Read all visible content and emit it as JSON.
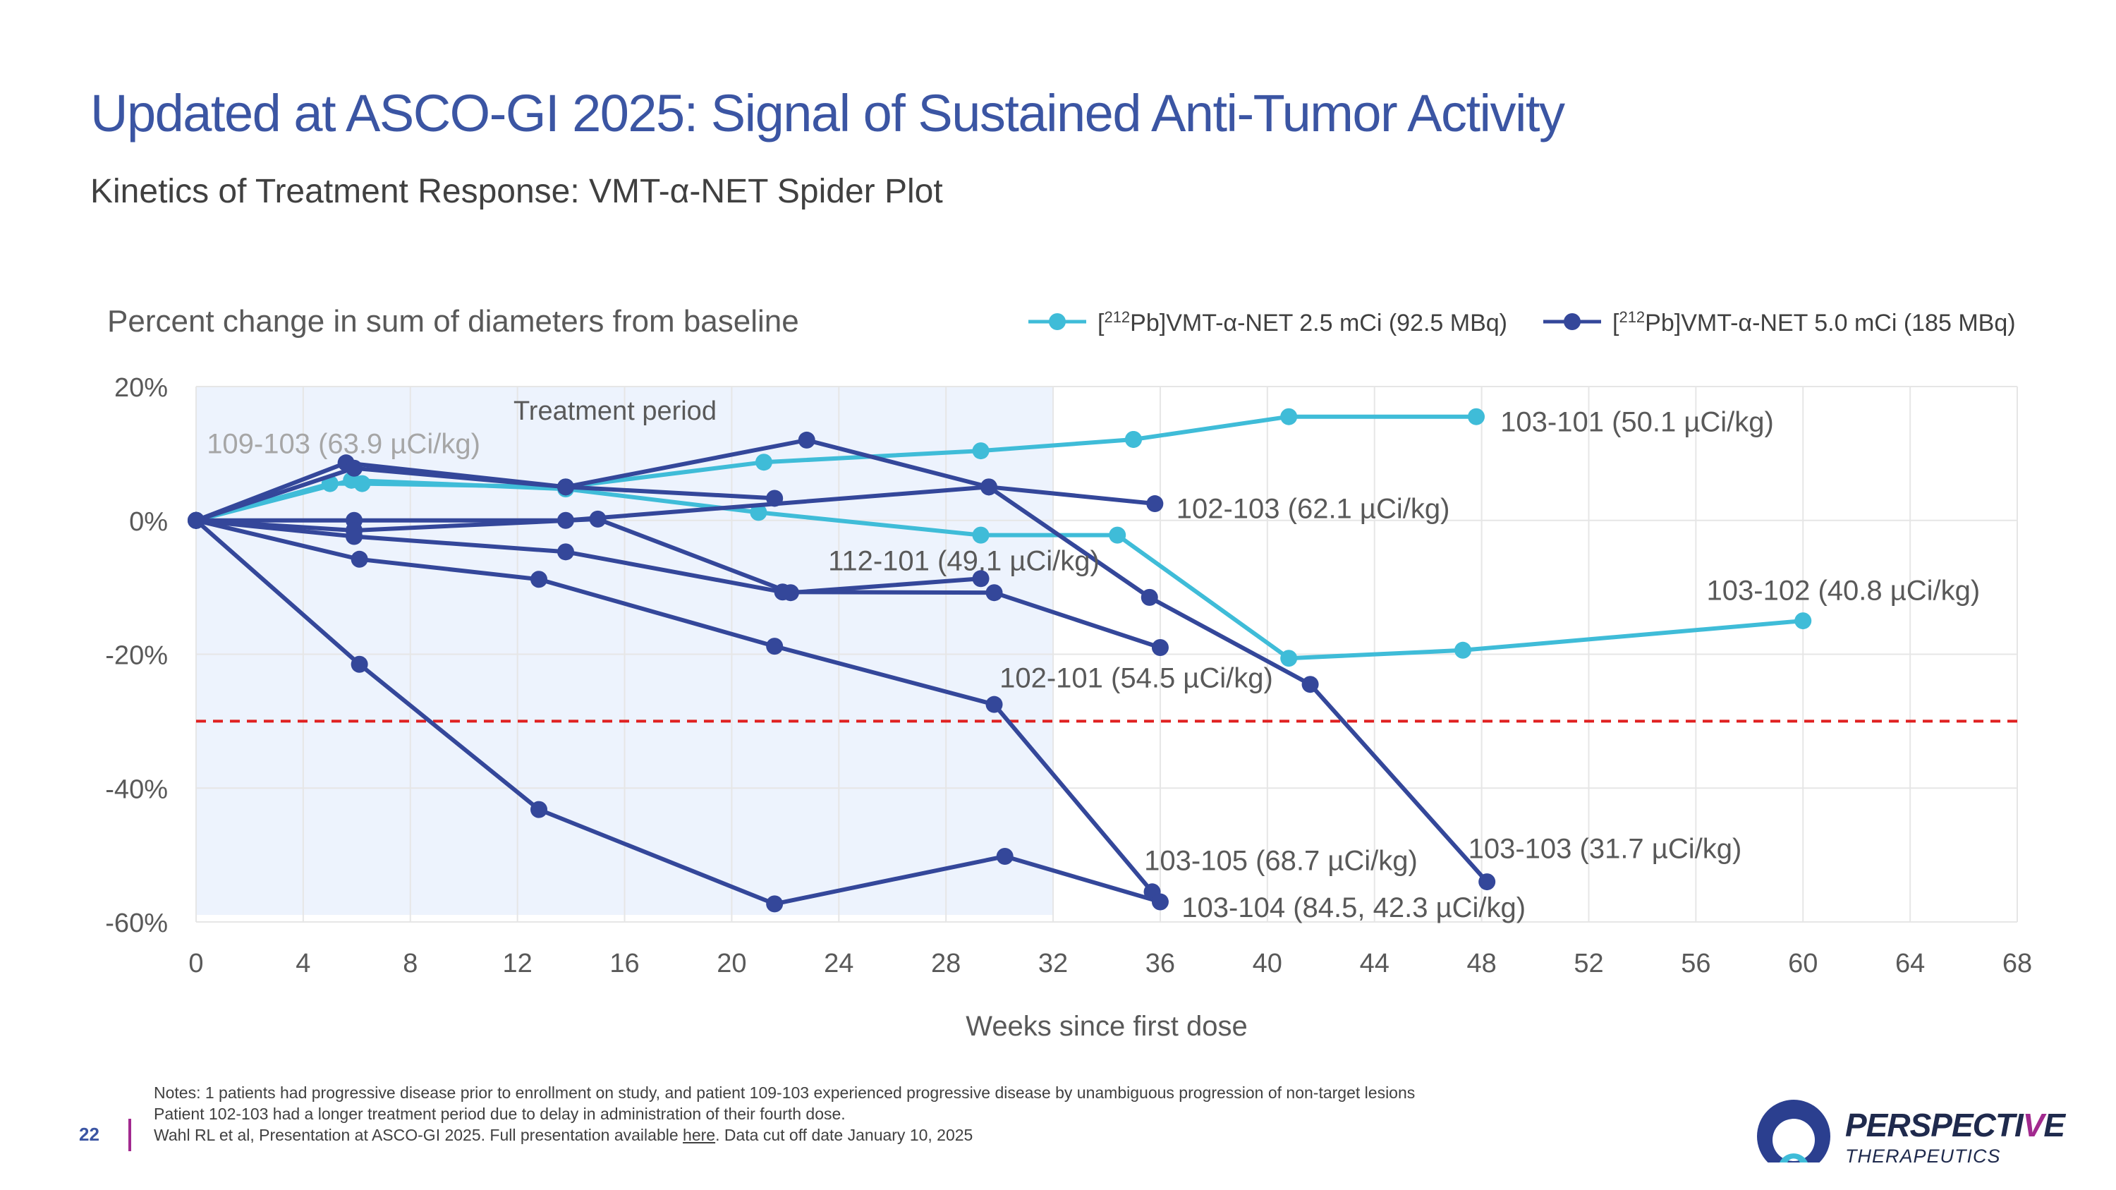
{
  "header": {
    "title": "Updated at ASCO-GI 2025: Signal of Sustained Anti-Tumor Activity",
    "subtitle": "Kinetics of Treatment Response: VMT-α-NET Spider Plot"
  },
  "chart_data": {
    "type": "line",
    "title": "Percent change in sum of diameters from baseline",
    "xlabel": "Weeks since first dose",
    "ylabel": "Percent change in sum of diameters from baseline",
    "xlim": [
      0,
      68
    ],
    "ylim": [
      -60,
      20
    ],
    "xticks": [
      0,
      4,
      8,
      12,
      16,
      20,
      24,
      28,
      32,
      36,
      40,
      44,
      48,
      52,
      56,
      60,
      64,
      68
    ],
    "yticks": [
      20,
      0,
      -20,
      -40,
      -60
    ],
    "ytick_labels": [
      "20%",
      "0%",
      "-20%",
      "-40%",
      "-60%"
    ],
    "treatment_period": {
      "label": "Treatment period",
      "x_start": 0,
      "x_end": 32
    },
    "threshold": {
      "y": -30,
      "style": "dashed",
      "color": "#e02020"
    },
    "legend": [
      {
        "sup": "212",
        "text": "Pb]VMT-α-NET 2.5 mCi (92.5 MBq)",
        "prefix": "[",
        "color": "#3fbcd8"
      },
      {
        "sup": "212",
        "text": "Pb]VMT-α-NET 5.0 mCi (185 MBq)",
        "prefix": "[",
        "color": "#34479a"
      }
    ],
    "series": [
      {
        "name": "103-101",
        "dose": "2.5",
        "color": "#3fbcd8",
        "x": [
          0,
          5,
          6.2,
          13.8,
          21.2,
          29.3,
          35
        ],
        "y": [
          0,
          5.5,
          5.5,
          5,
          8.7,
          10.4,
          12.1
        ]
      },
      {
        "name": "103-101 (cont.)",
        "dose": "2.5",
        "color": "#3fbcd8",
        "x": [
          35,
          40.8,
          47.8
        ],
        "y": [
          12.1,
          15.5,
          15.5
        ]
      },
      {
        "name": "103-102",
        "dose": "2.5",
        "color": "#3fbcd8",
        "x": [
          0,
          5.8,
          13.8,
          21,
          29.3,
          34.4,
          40.8,
          47.3,
          60
        ],
        "y": [
          0,
          6,
          4.7,
          1.2,
          -2.2,
          -2.2,
          -20.6,
          -19.4,
          -15
        ]
      },
      {
        "name": "109-103",
        "dose": "5.0",
        "color": "#34479a",
        "x": [
          0,
          5.6,
          13.8,
          21.6
        ],
        "y": [
          0,
          8.6,
          5,
          3.3
        ]
      },
      {
        "name": "102-103",
        "dose": "5.0",
        "color": "#34479a",
        "x": [
          0,
          5.9,
          13.8,
          22.8,
          29.6,
          35.8
        ],
        "y": [
          0,
          7.8,
          5,
          12,
          5,
          2.5
        ]
      },
      {
        "name": "103-103",
        "dose": "5.0",
        "color": "#34479a",
        "x": [
          0,
          5.9,
          13.8,
          29.6,
          35.6,
          41.6,
          48.2
        ],
        "y": [
          0,
          0,
          0,
          5,
          -11.5,
          -24.5,
          -54
        ]
      },
      {
        "name": "112-101",
        "dose": "5.0",
        "color": "#34479a",
        "x": [
          0,
          5.9,
          15,
          22.2,
          29.3
        ],
        "y": [
          0,
          -1.5,
          0.2,
          -10.8,
          -8.7
        ]
      },
      {
        "name": "102-101",
        "dose": "5.0",
        "color": "#34479a",
        "x": [
          0,
          5.9,
          13.8,
          21.9,
          29.8,
          36
        ],
        "y": [
          0,
          -2.4,
          -4.7,
          -10.7,
          -10.8,
          -19
        ]
      },
      {
        "name": "103-105",
        "dose": "5.0",
        "color": "#34479a",
        "x": [
          0,
          6.1,
          12.8,
          21.6,
          29.8,
          35.7
        ],
        "y": [
          0,
          -5.8,
          -8.8,
          -18.8,
          -27.5,
          -55.5
        ]
      },
      {
        "name": "103-104",
        "dose": "5.0",
        "color": "#34479a",
        "x": [
          0,
          6.1,
          12.8,
          21.6,
          30.2,
          36
        ],
        "y": [
          0,
          -21.5,
          -43.2,
          -57.3,
          -50.2,
          -57
        ]
      }
    ],
    "annotations": [
      {
        "text": "109-103 (63.9 µCi/kg)",
        "x": 0.4,
        "y": 11.5,
        "color": "#a6a6a6"
      },
      {
        "text": "103-101 (50.1 µCi/kg)",
        "x": 48.7,
        "y": 14.8,
        "color": "#595959"
      },
      {
        "text": "102-103 (62.1 µCi/kg)",
        "x": 36.6,
        "y": 1.8,
        "color": "#595959"
      },
      {
        "text": "112-101 (49.1 µCi/kg)",
        "x": 23.6,
        "y": -6,
        "color": "#595959"
      },
      {
        "text": "103-102 (40.8 µCi/kg)",
        "x": 56.4,
        "y": -10.4,
        "color": "#595959"
      },
      {
        "text": "102-101 (54.5 µCi/kg)",
        "x": 30,
        "y": -23.5,
        "color": "#595959"
      },
      {
        "text": "103-105 (68.7 µCi/kg)",
        "x": 35.4,
        "y": -50.8,
        "color": "#595959"
      },
      {
        "text": "103-103 (31.7 µCi/kg)",
        "x": 47.5,
        "y": -49,
        "color": "#595959"
      },
      {
        "text": "103-104 (84.5, 42.3 µCi/kg)",
        "x": 36.8,
        "y": -57.8,
        "color": "#595959"
      }
    ]
  },
  "notes": {
    "line1": "Notes: 1 patients had progressive disease prior to enrollment on study, and patient 109-103 experienced progressive disease by unambiguous progression of non-target lesions",
    "line2": "Patient 102-103 had a longer treatment period due to delay in administration of their fourth dose.",
    "line3_pre": "Wahl RL et al, Presentation at ASCO-GI 2025. Full presentation available ",
    "line3_link": "here",
    "line3_post": ". Data cut off date January 10, 2025"
  },
  "page_number": "22",
  "logo": {
    "name_a": "PERSPECTI",
    "name_b": "V",
    "name_c": "E",
    "sub": "THERAPEUTICS"
  },
  "colors": {
    "title": "#3b55a3",
    "dose_low": "#3fbcd8",
    "dose_high": "#34479a",
    "threshold": "#e02020",
    "shade": "#edf3fd"
  }
}
